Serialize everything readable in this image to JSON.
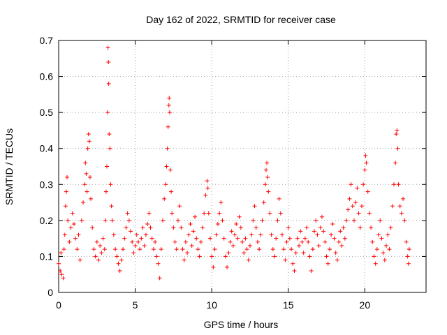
{
  "chart_data": {
    "type": "scatter",
    "title": "Day 162 of 2022, SRMTID for receiver case",
    "xlabel": "GPS time / hours",
    "ylabel": "SRMTID / TECUs",
    "xlim": [
      0,
      24
    ],
    "ylim": [
      0,
      0.7
    ],
    "xticks": [
      0,
      5,
      10,
      15,
      20
    ],
    "yticks": [
      0,
      0.1,
      0.2,
      0.3,
      0.4,
      0.5,
      0.6,
      0.7
    ],
    "grid": true,
    "marker": "+",
    "color": "#ff0000",
    "series": [
      {
        "name": "SRMTID",
        "points": [
          [
            0.0,
            0.08
          ],
          [
            0.1,
            0.06
          ],
          [
            0.15,
            0.11
          ],
          [
            0.2,
            0.05
          ],
          [
            0.3,
            0.04
          ],
          [
            0.35,
            0.12
          ],
          [
            0.4,
            0.16
          ],
          [
            0.45,
            0.24
          ],
          [
            0.5,
            0.28
          ],
          [
            0.55,
            0.32
          ],
          [
            0.6,
            0.2
          ],
          [
            0.7,
            0.14
          ],
          [
            0.8,
            0.18
          ],
          [
            0.9,
            0.22
          ],
          [
            1.0,
            0.19
          ],
          [
            1.1,
            0.15
          ],
          [
            1.2,
            0.12
          ],
          [
            1.3,
            0.16
          ],
          [
            1.4,
            0.09
          ],
          [
            1.5,
            0.2
          ],
          [
            1.6,
            0.25
          ],
          [
            1.7,
            0.3
          ],
          [
            1.75,
            0.36
          ],
          [
            1.8,
            0.33
          ],
          [
            1.85,
            0.28
          ],
          [
            1.9,
            0.4
          ],
          [
            1.95,
            0.44
          ],
          [
            2.0,
            0.42
          ],
          [
            2.05,
            0.32
          ],
          [
            2.1,
            0.26
          ],
          [
            2.2,
            0.18
          ],
          [
            2.3,
            0.12
          ],
          [
            2.4,
            0.1
          ],
          [
            2.5,
            0.14
          ],
          [
            2.6,
            0.09
          ],
          [
            2.7,
            0.13
          ],
          [
            2.8,
            0.11
          ],
          [
            2.9,
            0.15
          ],
          [
            3.0,
            0.12
          ],
          [
            3.05,
            0.2
          ],
          [
            3.1,
            0.28
          ],
          [
            3.15,
            0.35
          ],
          [
            3.2,
            0.5
          ],
          [
            3.22,
            0.68
          ],
          [
            3.25,
            0.64
          ],
          [
            3.27,
            0.58
          ],
          [
            3.3,
            0.44
          ],
          [
            3.35,
            0.4
          ],
          [
            3.4,
            0.3
          ],
          [
            3.45,
            0.24
          ],
          [
            3.5,
            0.2
          ],
          [
            3.6,
            0.16
          ],
          [
            3.7,
            0.12
          ],
          [
            3.8,
            0.1
          ],
          [
            3.9,
            0.08
          ],
          [
            4.0,
            0.06
          ],
          [
            4.1,
            0.09
          ],
          [
            4.2,
            0.12
          ],
          [
            4.3,
            0.15
          ],
          [
            4.4,
            0.18
          ],
          [
            4.5,
            0.22
          ],
          [
            4.6,
            0.2
          ],
          [
            4.7,
            0.17
          ],
          [
            4.8,
            0.14
          ],
          [
            4.9,
            0.11
          ],
          [
            5.0,
            0.13
          ],
          [
            5.1,
            0.16
          ],
          [
            5.2,
            0.14
          ],
          [
            5.3,
            0.12
          ],
          [
            5.4,
            0.15
          ],
          [
            5.5,
            0.18
          ],
          [
            5.6,
            0.13
          ],
          [
            5.7,
            0.16
          ],
          [
            5.8,
            0.19
          ],
          [
            5.9,
            0.22
          ],
          [
            6.0,
            0.18
          ],
          [
            6.1,
            0.15
          ],
          [
            6.2,
            0.12
          ],
          [
            6.3,
            0.14
          ],
          [
            6.4,
            0.1
          ],
          [
            6.5,
            0.08
          ],
          [
            6.6,
            0.04
          ],
          [
            6.7,
            0.12
          ],
          [
            6.8,
            0.2
          ],
          [
            6.9,
            0.26
          ],
          [
            7.0,
            0.3
          ],
          [
            7.05,
            0.35
          ],
          [
            7.1,
            0.4
          ],
          [
            7.15,
            0.46
          ],
          [
            7.2,
            0.52
          ],
          [
            7.22,
            0.54
          ],
          [
            7.25,
            0.5
          ],
          [
            7.3,
            0.34
          ],
          [
            7.35,
            0.28
          ],
          [
            7.4,
            0.22
          ],
          [
            7.5,
            0.18
          ],
          [
            7.6,
            0.14
          ],
          [
            7.7,
            0.12
          ],
          [
            7.8,
            0.2
          ],
          [
            7.9,
            0.24
          ],
          [
            8.0,
            0.18
          ],
          [
            8.1,
            0.12
          ],
          [
            8.2,
            0.09
          ],
          [
            8.3,
            0.14
          ],
          [
            8.4,
            0.11
          ],
          [
            8.5,
            0.16
          ],
          [
            8.6,
            0.19
          ],
          [
            8.7,
            0.13
          ],
          [
            8.8,
            0.17
          ],
          [
            8.9,
            0.21
          ],
          [
            9.0,
            0.15
          ],
          [
            9.1,
            0.12
          ],
          [
            9.2,
            0.1
          ],
          [
            9.3,
            0.14
          ],
          [
            9.4,
            0.18
          ],
          [
            9.5,
            0.22
          ],
          [
            9.6,
            0.27
          ],
          [
            9.7,
            0.31
          ],
          [
            9.75,
            0.29
          ],
          [
            9.8,
            0.22
          ],
          [
            9.9,
            0.15
          ],
          [
            10.0,
            0.1
          ],
          [
            10.1,
            0.07
          ],
          [
            10.2,
            0.12
          ],
          [
            10.3,
            0.16
          ],
          [
            10.4,
            0.19
          ],
          [
            10.5,
            0.22
          ],
          [
            10.6,
            0.25
          ],
          [
            10.7,
            0.2
          ],
          [
            10.8,
            0.15
          ],
          [
            10.9,
            0.1
          ],
          [
            11.0,
            0.07
          ],
          [
            11.1,
            0.11
          ],
          [
            11.2,
            0.14
          ],
          [
            11.3,
            0.17
          ],
          [
            11.4,
            0.13
          ],
          [
            11.5,
            0.16
          ],
          [
            11.6,
            0.19
          ],
          [
            11.7,
            0.15
          ],
          [
            11.8,
            0.21
          ],
          [
            11.9,
            0.18
          ],
          [
            12.0,
            0.14
          ],
          [
            12.1,
            0.11
          ],
          [
            12.2,
            0.15
          ],
          [
            12.3,
            0.12
          ],
          [
            12.4,
            0.09
          ],
          [
            12.5,
            0.13
          ],
          [
            12.6,
            0.16
          ],
          [
            12.7,
            0.2
          ],
          [
            12.8,
            0.24
          ],
          [
            12.9,
            0.18
          ],
          [
            13.0,
            0.14
          ],
          [
            13.1,
            0.12
          ],
          [
            13.2,
            0.16
          ],
          [
            13.3,
            0.2
          ],
          [
            13.4,
            0.25
          ],
          [
            13.5,
            0.3
          ],
          [
            13.55,
            0.34
          ],
          [
            13.6,
            0.36
          ],
          [
            13.65,
            0.32
          ],
          [
            13.7,
            0.28
          ],
          [
            13.8,
            0.22
          ],
          [
            13.9,
            0.16
          ],
          [
            14.0,
            0.12
          ],
          [
            14.1,
            0.1
          ],
          [
            14.2,
            0.15
          ],
          [
            14.3,
            0.2
          ],
          [
            14.4,
            0.26
          ],
          [
            14.5,
            0.22
          ],
          [
            14.6,
            0.16
          ],
          [
            14.7,
            0.12
          ],
          [
            14.8,
            0.09
          ],
          [
            14.9,
            0.14
          ],
          [
            15.0,
            0.18
          ],
          [
            15.1,
            0.15
          ],
          [
            15.2,
            0.12
          ],
          [
            15.3,
            0.08
          ],
          [
            15.4,
            0.06
          ],
          [
            15.5,
            0.11
          ],
          [
            15.6,
            0.15
          ],
          [
            15.7,
            0.13
          ],
          [
            15.8,
            0.17
          ],
          [
            15.9,
            0.14
          ],
          [
            16.0,
            0.11
          ],
          [
            16.1,
            0.15
          ],
          [
            16.2,
            0.18
          ],
          [
            16.3,
            0.14
          ],
          [
            16.4,
            0.1
          ],
          [
            16.5,
            0.06
          ],
          [
            16.6,
            0.12
          ],
          [
            16.7,
            0.17
          ],
          [
            16.8,
            0.2
          ],
          [
            16.9,
            0.16
          ],
          [
            17.0,
            0.13
          ],
          [
            17.1,
            0.18
          ],
          [
            17.2,
            0.21
          ],
          [
            17.3,
            0.17
          ],
          [
            17.4,
            0.14
          ],
          [
            17.5,
            0.1
          ],
          [
            17.6,
            0.08
          ],
          [
            17.7,
            0.12
          ],
          [
            17.8,
            0.16
          ],
          [
            17.9,
            0.19
          ],
          [
            18.0,
            0.15
          ],
          [
            18.1,
            0.11
          ],
          [
            18.2,
            0.09
          ],
          [
            18.3,
            0.14
          ],
          [
            18.4,
            0.17
          ],
          [
            18.5,
            0.13
          ],
          [
            18.6,
            0.18
          ],
          [
            18.7,
            0.15
          ],
          [
            18.8,
            0.2
          ],
          [
            18.9,
            0.23
          ],
          [
            19.0,
            0.26
          ],
          [
            19.1,
            0.3
          ],
          [
            19.2,
            0.24
          ],
          [
            19.3,
            0.2
          ],
          [
            19.4,
            0.25
          ],
          [
            19.5,
            0.29
          ],
          [
            19.6,
            0.22
          ],
          [
            19.7,
            0.18
          ],
          [
            19.8,
            0.24
          ],
          [
            19.9,
            0.3
          ],
          [
            20.0,
            0.34
          ],
          [
            20.05,
            0.38
          ],
          [
            20.1,
            0.36
          ],
          [
            20.2,
            0.28
          ],
          [
            20.3,
            0.22
          ],
          [
            20.4,
            0.18
          ],
          [
            20.5,
            0.14
          ],
          [
            20.6,
            0.1
          ],
          [
            20.7,
            0.08
          ],
          [
            20.8,
            0.12
          ],
          [
            20.9,
            0.16
          ],
          [
            21.0,
            0.2
          ],
          [
            21.1,
            0.15
          ],
          [
            21.2,
            0.11
          ],
          [
            21.3,
            0.09
          ],
          [
            21.4,
            0.13
          ],
          [
            21.5,
            0.16
          ],
          [
            21.6,
            0.12
          ],
          [
            21.7,
            0.18
          ],
          [
            21.8,
            0.24
          ],
          [
            21.9,
            0.3
          ],
          [
            22.0,
            0.36
          ],
          [
            22.05,
            0.44
          ],
          [
            22.1,
            0.45
          ],
          [
            22.15,
            0.4
          ],
          [
            22.2,
            0.3
          ],
          [
            22.3,
            0.24
          ],
          [
            22.4,
            0.22
          ],
          [
            22.5,
            0.26
          ],
          [
            22.6,
            0.2
          ],
          [
            22.7,
            0.14
          ],
          [
            22.8,
            0.1
          ],
          [
            22.85,
            0.08
          ],
          [
            22.9,
            0.12
          ]
        ]
      }
    ]
  }
}
